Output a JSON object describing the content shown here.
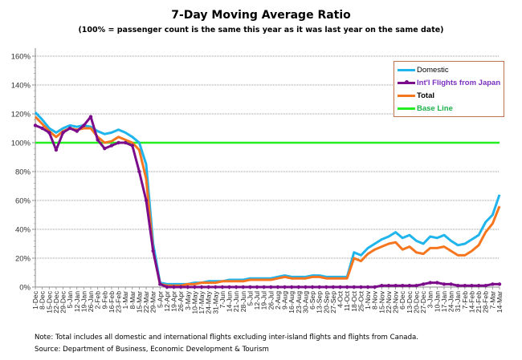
{
  "chart_data": {
    "type": "line",
    "title": "7-Day Moving Average Ratio",
    "subtitle": "(100% = passenger count  is the same this year as it was last year on the same date)",
    "xlabel": "",
    "ylabel": "",
    "ylim": [
      0,
      160
    ],
    "yticks": [
      "0%",
      "20%",
      "40%",
      "60%",
      "80%",
      "100%",
      "120%",
      "140%",
      "160%"
    ],
    "ytick_values": [
      0,
      20,
      40,
      60,
      80,
      100,
      120,
      140,
      160
    ],
    "grid": true,
    "legend_position": "top-right",
    "x": [
      "1-Dec",
      "8-Dec",
      "15-Dec",
      "22-Dec",
      "29-Dec",
      "5-Jan",
      "12-Jan",
      "19-Jan",
      "26-Jan",
      "2-Feb",
      "9-Feb",
      "16-Feb",
      "23-Feb",
      "1-Mar",
      "8-Mar",
      "15-Mar",
      "22-Mar",
      "29-Mar",
      "5-Apr",
      "12-Apr",
      "19-Apr",
      "26-Apr",
      "3-May",
      "10-May",
      "17-May",
      "24-May",
      "31-May",
      "7-Jun",
      "14-Jun",
      "21-Jun",
      "28-Jun",
      "5-Jul",
      "12-Jul",
      "19-Jul",
      "26-Jul",
      "2-Aug",
      "9-Aug",
      "16-Aug",
      "23-Aug",
      "30-Aug",
      "6-Sep",
      "13-Sep",
      "20-Sep",
      "27-Sep",
      "4-Oct",
      "11-Oct",
      "18-Oct",
      "25-Oct",
      "1-Nov",
      "8-Nov",
      "15-Nov",
      "22-Nov",
      "29-Nov",
      "6-Dec",
      "13-Dec",
      "20-Dec",
      "27-Dec",
      "3-Jan",
      "10-Jan",
      "17-Jan",
      "24-Jan",
      "31-Jan",
      "7-Feb",
      "14-Feb",
      "21-Feb",
      "28-Feb",
      "7-Mar",
      "14-Mar"
    ],
    "series": [
      {
        "name": "Domestic",
        "color": "#1fb4ec",
        "values": [
          121,
          116,
          110,
          107,
          110,
          112,
          111,
          112,
          111,
          108,
          106,
          107,
          109,
          107,
          104,
          100,
          85,
          30,
          3,
          2,
          2,
          2,
          2,
          3,
          3,
          4,
          4,
          4,
          5,
          5,
          5,
          6,
          6,
          6,
          6,
          7,
          8,
          7,
          7,
          7,
          8,
          8,
          7,
          7,
          7,
          7,
          24,
          22,
          27,
          30,
          33,
          35,
          38,
          34,
          36,
          32,
          30,
          35,
          34,
          36,
          32,
          29,
          30,
          33,
          36,
          45,
          50,
          64
        ]
      },
      {
        "name": "Int'l Flights from Japan",
        "color": "#7b0c8a",
        "values": [
          112,
          110,
          107,
          95,
          107,
          110,
          108,
          112,
          118,
          102,
          96,
          98,
          100,
          100,
          98,
          80,
          60,
          25,
          2,
          0,
          0,
          0,
          0,
          0,
          0,
          0,
          0,
          0,
          0,
          0,
          0,
          0,
          0,
          0,
          0,
          0,
          0,
          0,
          0,
          0,
          0,
          0,
          0,
          0,
          0,
          0,
          0,
          0,
          0,
          0,
          1,
          1,
          1,
          1,
          1,
          1,
          2,
          3,
          3,
          2,
          2,
          1,
          1,
          1,
          1,
          1,
          2,
          2
        ]
      },
      {
        "name": "Total",
        "color": "#f5761f",
        "values": [
          118,
          113,
          108,
          104,
          108,
          110,
          109,
          110,
          110,
          104,
          100,
          101,
          104,
          102,
          100,
          95,
          75,
          25,
          2,
          1,
          1,
          1,
          2,
          2,
          3,
          3,
          3,
          4,
          4,
          4,
          4,
          5,
          5,
          5,
          5,
          6,
          7,
          6,
          6,
          6,
          7,
          7,
          6,
          6,
          6,
          6,
          20,
          18,
          23,
          26,
          28,
          30,
          31,
          26,
          28,
          24,
          23,
          27,
          27,
          28,
          25,
          22,
          22,
          25,
          29,
          38,
          44,
          56
        ]
      },
      {
        "name": "Base Line",
        "color": "#22ee22",
        "values": [
          100,
          100,
          100,
          100,
          100,
          100,
          100,
          100,
          100,
          100,
          100,
          100,
          100,
          100,
          100,
          100,
          100,
          100,
          100,
          100,
          100,
          100,
          100,
          100,
          100,
          100,
          100,
          100,
          100,
          100,
          100,
          100,
          100,
          100,
          100,
          100,
          100,
          100,
          100,
          100,
          100,
          100,
          100,
          100,
          100,
          100,
          100,
          100,
          100,
          100,
          100,
          100,
          100,
          100,
          100,
          100,
          100,
          100,
          100,
          100,
          100,
          100,
          100,
          100,
          100,
          100,
          100,
          100
        ]
      }
    ]
  },
  "legend": {
    "items": [
      {
        "label": "Domestic",
        "color": "#1fb4ec",
        "text_color": "#000000",
        "marker": false
      },
      {
        "label": "Int'l Flights from Japan",
        "color": "#7b0c8a",
        "text_color": "#7b2fbf",
        "marker": true
      },
      {
        "label": "Total",
        "color": "#f5761f",
        "text_color": "#000000",
        "marker": false
      },
      {
        "label": "Base Line",
        "color": "#22ee22",
        "text_color": "#1ab04a",
        "marker": false
      }
    ]
  },
  "footnote": {
    "note": "Note: Total includes all domestic and international flights excluding inter-island flights and flights from Canada.",
    "source": "Source: Department of Business, Economic Development & Tourism"
  }
}
